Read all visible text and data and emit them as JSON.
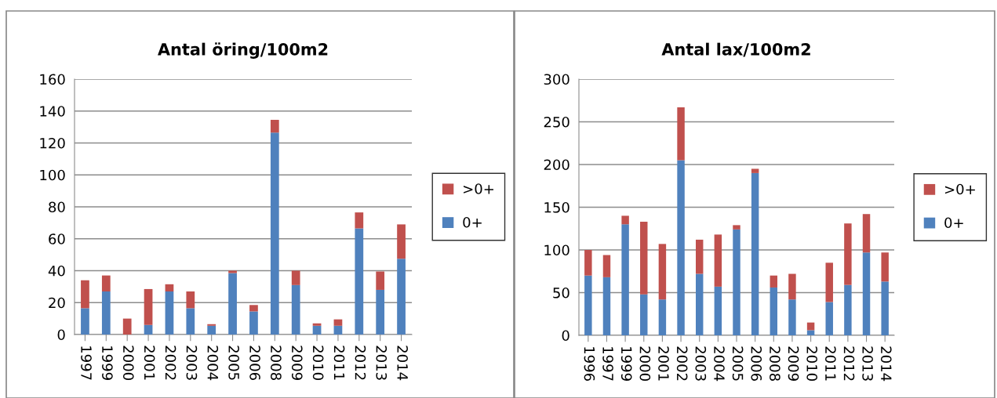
{
  "chart_data": [
    {
      "type": "bar",
      "title": "Antal öring/100m2",
      "stacked": true,
      "grid": "y",
      "legend": "right",
      "ylim": [
        0,
        160
      ],
      "yticks": [
        0,
        20,
        40,
        60,
        80,
        100,
        120,
        140,
        160
      ],
      "categories": [
        "1997",
        "1999",
        "2000",
        "2001",
        "2002",
        "2003",
        "2004",
        "2005",
        "2006",
        "2008",
        "2009",
        "2010",
        "2011",
        "2012",
        "2013",
        "2014"
      ],
      "series": [
        {
          "name": "0+",
          "color": "#4f81bd",
          "values": [
            16.5,
            27,
            0,
            6,
            27,
            16.5,
            5.5,
            38.5,
            14.5,
            126.5,
            31,
            5.5,
            5.5,
            66.5,
            28,
            47.5
          ]
        },
        {
          "name": ">0+",
          "color": "#c0504d",
          "values": [
            17.5,
            10,
            10,
            22.5,
            4.5,
            10.5,
            1,
            1.5,
            4,
            8,
            9,
            1.5,
            4,
            10,
            11.5,
            21.5
          ]
        }
      ]
    },
    {
      "type": "bar",
      "title": "Antal lax/100m2",
      "stacked": true,
      "grid": "y",
      "legend": "right",
      "ylim": [
        0,
        300
      ],
      "yticks": [
        0,
        50,
        100,
        150,
        200,
        250,
        300
      ],
      "categories": [
        "1996",
        "1997",
        "1999",
        "2000",
        "2001",
        "2002",
        "2003",
        "2004",
        "2005",
        "2006",
        "2008",
        "2009",
        "2010",
        "2011",
        "2012",
        "2013",
        "2014"
      ],
      "series": [
        {
          "name": "0+",
          "color": "#4f81bd",
          "values": [
            70,
            68,
            130,
            48,
            42,
            205,
            72,
            57,
            124,
            190,
            56,
            42,
            6,
            39,
            59,
            97,
            63
          ]
        },
        {
          "name": ">0+",
          "color": "#c0504d",
          "values": [
            30,
            26,
            10,
            85,
            65,
            62,
            40,
            61,
            5,
            5,
            14,
            30,
            9,
            46,
            72,
            45,
            34
          ]
        }
      ]
    }
  ]
}
